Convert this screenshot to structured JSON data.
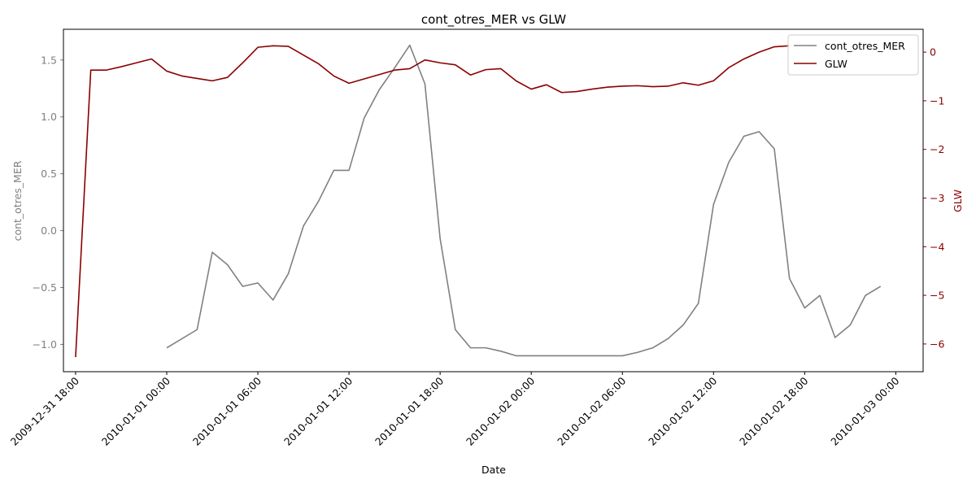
{
  "chart_data": {
    "type": "line",
    "title": "cont_otres_MER vs GLW",
    "xlabel": "Date",
    "ylabel_left": "cont_otres_MER",
    "ylabel_right": "GLW",
    "x_ticks": [
      "2009-12-31 18:00",
      "2010-01-01 00:00",
      "2010-01-01 06:00",
      "2010-01-01 12:00",
      "2010-01-01 18:00",
      "2010-01-02 00:00",
      "2010-01-02 06:00",
      "2010-01-02 12:00",
      "2010-01-02 18:00",
      "2010-01-03 00:00"
    ],
    "x_range_hours": [
      -0.8,
      55.8
    ],
    "y_left_ticks": [
      "−1.0",
      "−0.5",
      "0.0",
      "0.5",
      "1.0",
      "1.5"
    ],
    "y_left_tick_values": [
      -1.0,
      -0.5,
      0.0,
      0.5,
      1.0,
      1.5
    ],
    "y_left_range": [
      -1.24,
      1.77
    ],
    "y_right_ticks": [
      "−6",
      "−5",
      "−4",
      "−3",
      "−2",
      "−1",
      "0"
    ],
    "y_right_tick_values": [
      -6,
      -5,
      -4,
      -3,
      -2,
      -1,
      0
    ],
    "y_right_range": [
      -6.57,
      0.47
    ],
    "legend_position": "top-right",
    "series": [
      {
        "name": "cont_otres_MER",
        "axis": "left",
        "color": "#808080",
        "x_hours": [
          6,
          8,
          9,
          10,
          11,
          12,
          13,
          14,
          15,
          16,
          17,
          18,
          19,
          20,
          21,
          22,
          23,
          24,
          25,
          26,
          27,
          28,
          29,
          30,
          31,
          32,
          33,
          34,
          35,
          36,
          37,
          38,
          39,
          40,
          41,
          42,
          43,
          44,
          45,
          46,
          47,
          48,
          49,
          50,
          51,
          52,
          53
        ],
        "values": [
          -1.03,
          -0.87,
          -0.19,
          -0.3,
          -0.49,
          -0.46,
          -0.61,
          -0.38,
          0.04,
          0.26,
          0.53,
          0.53,
          0.99,
          1.24,
          1.43,
          1.63,
          1.29,
          -0.07,
          -0.87,
          -1.03,
          -1.03,
          -1.06,
          -1.1,
          -1.1,
          -1.1,
          -1.1,
          -1.1,
          -1.1,
          -1.1,
          -1.1,
          -1.07,
          -1.03,
          -0.95,
          -0.83,
          -0.64,
          0.23,
          0.6,
          0.83,
          0.87,
          0.72,
          -0.42,
          -0.68,
          -0.57,
          -0.94,
          -0.83,
          -0.57,
          -0.49
        ]
      },
      {
        "name": "GLW",
        "axis": "right",
        "color": "#8b0000",
        "x_hours": [
          0,
          1,
          2,
          3,
          4,
          5,
          6,
          7,
          8,
          9,
          10,
          11,
          12,
          13,
          14,
          15,
          16,
          17,
          18,
          19,
          20,
          21,
          22,
          23,
          24,
          25,
          26,
          27,
          28,
          29,
          30,
          31,
          32,
          33,
          34,
          35,
          36,
          37,
          38,
          39,
          40,
          41,
          42,
          43,
          44,
          45,
          46,
          47,
          48
        ],
        "values": [
          -6.27,
          -0.37,
          -0.37,
          -0.3,
          -0.22,
          -0.14,
          -0.39,
          -0.49,
          -0.54,
          -0.59,
          -0.52,
          -0.22,
          0.1,
          0.13,
          0.12,
          -0.06,
          -0.24,
          -0.49,
          -0.64,
          -0.55,
          -0.46,
          -0.37,
          -0.34,
          -0.16,
          -0.22,
          -0.26,
          -0.47,
          -0.36,
          -0.34,
          -0.59,
          -0.76,
          -0.67,
          -0.83,
          -0.81,
          -0.76,
          -0.72,
          -0.7,
          -0.69,
          -0.71,
          -0.7,
          -0.63,
          -0.68,
          -0.59,
          -0.32,
          -0.14,
          0.0,
          0.11,
          0.13,
          null
        ]
      }
    ]
  }
}
